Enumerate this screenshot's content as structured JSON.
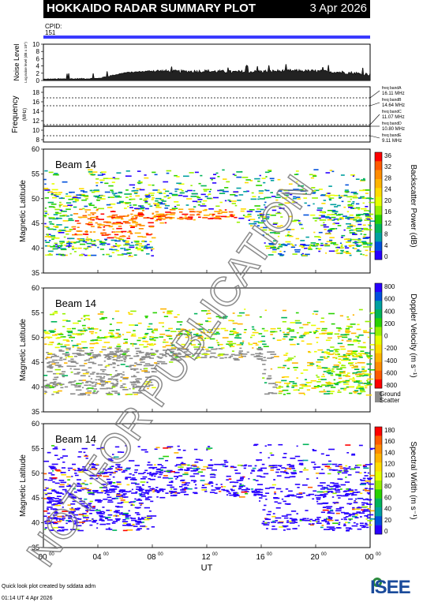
{
  "header": {
    "title": "HOKKAIDO RADAR SUMMARY PLOT",
    "date": "3 Apr 2026",
    "cpid_label": "CPID:",
    "cpid_value": "151"
  },
  "noise_panel": {
    "ylabel": "Noise Level",
    "ylabel_sub": "Log noise level (dB x 10^)",
    "yticks": [
      "10",
      "8",
      "6",
      "4",
      "2",
      "0"
    ]
  },
  "freq_panel": {
    "ylabel": "Frequency",
    "ylabel_unit": "(MHz)",
    "yticks": [
      "18",
      "16",
      "14",
      "12",
      "10",
      "8"
    ],
    "bands": [
      {
        "name": "freq bandA",
        "freq": "16.11 MHz"
      },
      {
        "name": "freq bandB",
        "freq": "14.64 MHz"
      },
      {
        "name": "freq bandC",
        "freq": "11.07 MHz"
      },
      {
        "name": "freq bandD",
        "freq": "10.80 MHz"
      },
      {
        "name": "freq bandE",
        "freq": "9.11 MHz"
      }
    ]
  },
  "panels": [
    {
      "beam": "Beam 14",
      "ylabel": "Magnetic Latitude",
      "yticks": [
        "60",
        "55",
        "50",
        "45",
        "40",
        "35"
      ],
      "cbar_label": "Backscatter Power (dB)",
      "cbar_ticks": [
        "36",
        "32",
        "28",
        "24",
        "20",
        "16",
        "12",
        "8",
        "4",
        "0"
      ],
      "cbar_colors": [
        "#ff0000",
        "#ff5a00",
        "#ff8c00",
        "#ffb400",
        "#ffdc00",
        "#e6ff00",
        "#96f000",
        "#28d200",
        "#00b45a",
        "#00a0a0",
        "#0050dc",
        "#2800ff"
      ]
    },
    {
      "beam": "Beam 14",
      "ylabel": "Magnetic Latitude",
      "yticks": [
        "60",
        "55",
        "50",
        "45",
        "40",
        "35"
      ],
      "cbar_label": "Doppler Velocity (m s⁻¹)",
      "cbar_ticks": [
        "800",
        "600",
        "400",
        "200",
        "0",
        "-200",
        "-400",
        "-600",
        "-800"
      ],
      "cbar_colors": [
        "#2800ff",
        "#0050dc",
        "#00a0a0",
        "#00b45a",
        "#28d200",
        "#96f000",
        "#e6ff00",
        "#ffdc00",
        "#ffb400",
        "#ff8c00",
        "#ff5a00",
        "#ff0000"
      ],
      "ground_label_1": "Ground",
      "ground_label_2": "Scatter"
    },
    {
      "beam": "Beam 14",
      "ylabel": "Magnetic Latitude",
      "yticks": [
        "60",
        "55",
        "50",
        "45",
        "40",
        "35"
      ],
      "cbar_label": "Spectral Width (m s⁻¹)",
      "cbar_ticks": [
        "180",
        "160",
        "140",
        "120",
        "100",
        "80",
        "60",
        "40",
        "20",
        "0"
      ],
      "cbar_colors": [
        "#ff0000",
        "#ff5a00",
        "#ff8c00",
        "#ffb400",
        "#ffdc00",
        "#e6ff00",
        "#96f000",
        "#28d200",
        "#00b45a",
        "#00a0a0",
        "#0050dc",
        "#2800ff"
      ]
    }
  ],
  "xaxis": {
    "ticks": [
      "00",
      "04",
      "08",
      "12",
      "16",
      "20",
      "00"
    ],
    "tick_sup": "00",
    "label": "UT"
  },
  "footer": {
    "credit": "Quick look plot created by sddata adm",
    "time": "01:14 UT  4 Apr 2026",
    "logo": "ISEE"
  },
  "watermark": "NOT FOR PUBLICATION",
  "chart_data": [
    {
      "type": "line",
      "title": "Noise Level",
      "xlabel": "UT",
      "ylim": [
        0,
        10
      ],
      "x": [
        0,
        2,
        4,
        6,
        8,
        10,
        12,
        14,
        16,
        18,
        20,
        22,
        24
      ],
      "series": [
        {
          "values": [
            0.3,
            0.4,
            0.5,
            2.1,
            2.6,
            2.4,
            2.5,
            2.3,
            2.4,
            2.6,
            2.5,
            2.2,
            1.6
          ]
        }
      ]
    },
    {
      "type": "line",
      "title": "Frequency",
      "ylim": [
        8,
        18
      ],
      "x": [
        0,
        24
      ],
      "series": [
        {
          "values": [
            10.8,
            10.8
          ]
        }
      ]
    },
    {
      "type": "heatmap",
      "title": "Backscatter Power (dB)",
      "ylabel": "Magnetic Latitude",
      "xlim": [
        0,
        24
      ],
      "ylim": [
        35,
        60
      ],
      "clim": [
        0,
        36
      ]
    },
    {
      "type": "heatmap",
      "title": "Doppler Velocity (m s⁻¹)",
      "ylabel": "Magnetic Latitude",
      "xlim": [
        0,
        24
      ],
      "ylim": [
        35,
        60
      ],
      "clim": [
        -800,
        800
      ]
    },
    {
      "type": "heatmap",
      "title": "Spectral Width (m s⁻¹)",
      "ylabel": "Magnetic Latitude",
      "xlim": [
        0,
        24
      ],
      "ylim": [
        35,
        60
      ],
      "clim": [
        0,
        180
      ]
    }
  ]
}
